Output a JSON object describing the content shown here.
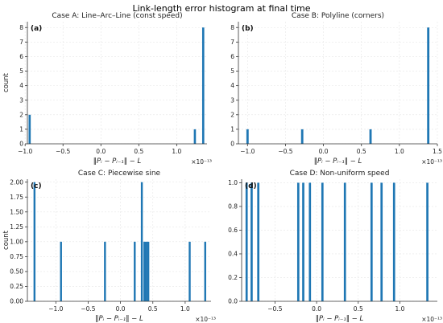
{
  "figure": {
    "title": "Link-length error histogram at final time"
  },
  "style": {
    "bar_color": "#1f77b4",
    "grid_color": "#e6e6e6",
    "axis_color": "#333333"
  },
  "chart_data": [
    {
      "type": "bar",
      "panel": "(a)",
      "title": "Case A: Line–Arc–Line (const speed)",
      "xlabel": "‖Pᵢ − Pᵢ₋₁‖ − L",
      "ylabel": "count",
      "offset_text": "×10⁻¹³",
      "xlim": [
        -0.97,
        1.4
      ],
      "ylim": [
        0,
        8.4
      ],
      "xticks": [
        -1.0,
        -0.5,
        0.0,
        0.5,
        1.0
      ],
      "xtick_labels": [
        "−1.0",
        "−0.5",
        "0.0",
        "0.5",
        "1.0"
      ],
      "yticks": [
        0,
        1,
        2,
        3,
        4,
        5,
        6,
        7,
        8
      ],
      "ytick_labels": [
        "0",
        "1",
        "2",
        "3",
        "4",
        "5",
        "6",
        "7",
        "8"
      ],
      "bin_width": 0.028,
      "x": [
        -0.94,
        1.24,
        1.35
      ],
      "values": [
        2,
        1,
        8
      ],
      "grid": true
    },
    {
      "type": "bar",
      "panel": "(b)",
      "title": "Case B: Polyline (corners)",
      "xlabel": "‖Pᵢ − Pᵢ₋₁‖ − L",
      "ylabel": "",
      "offset_text": "×10⁻¹³",
      "xlim": [
        -1.12,
        1.5
      ],
      "ylim": [
        0,
        8.4
      ],
      "xticks": [
        -1.0,
        -0.5,
        0.0,
        0.5,
        1.0,
        1.5
      ],
      "xtick_labels": [
        "−1.0",
        "−0.5",
        "0.0",
        "0.5",
        "1.0",
        "1.5"
      ],
      "yticks": [
        0,
        1,
        2,
        3,
        4,
        5,
        6,
        7,
        8
      ],
      "ytick_labels": [
        "0",
        "1",
        "2",
        "3",
        "4",
        "5",
        "6",
        "7",
        "8"
      ],
      "bin_width": 0.03,
      "x": [
        -1.0,
        -0.28,
        0.62,
        1.38
      ],
      "values": [
        1,
        1,
        1,
        8
      ],
      "grid": true
    },
    {
      "type": "bar",
      "panel": "(c)",
      "title": "Case C: Piecewise sine",
      "xlabel": "‖Pᵢ − Pᵢ₋₁‖ − L",
      "ylabel": "count",
      "offset_text": "×10⁻¹³",
      "xlim": [
        -1.44,
        1.4
      ],
      "ylim": [
        0,
        2.05
      ],
      "xticks": [
        -1.0,
        -0.5,
        0.0,
        0.5,
        1.0
      ],
      "xtick_labels": [
        "−1.0",
        "−0.5",
        "0.0",
        "0.5",
        "1.0"
      ],
      "yticks": [
        0,
        0.25,
        0.5,
        0.75,
        1.0,
        1.25,
        1.5,
        1.75,
        2.0
      ],
      "ytick_labels": [
        "0.00",
        "0.25",
        "0.50",
        "0.75",
        "1.00",
        "1.25",
        "1.50",
        "1.75",
        "2.00"
      ],
      "bin_width": 0.03,
      "x": [
        -1.33,
        -0.92,
        -0.24,
        0.22,
        0.33,
        0.37,
        0.4,
        0.43,
        1.07,
        1.31
      ],
      "values": [
        2,
        1,
        1,
        1,
        2,
        1,
        1,
        1,
        1,
        1
      ],
      "grid": true
    },
    {
      "type": "bar",
      "panel": "(d)",
      "title": "Case D: Non-uniform speed",
      "xlabel": "‖Pᵢ − Pᵢ₋₁‖ − L",
      "ylabel": "",
      "offset_text": "×10⁻¹³",
      "xlim": [
        -0.9,
        1.45
      ],
      "ylim": [
        0,
        1.03
      ],
      "xticks": [
        -0.5,
        0.0,
        0.5,
        1.0
      ],
      "xtick_labels": [
        "−0.5",
        "0.0",
        "0.5",
        "1.0"
      ],
      "yticks": [
        0,
        0.2,
        0.4,
        0.6,
        0.8,
        1.0
      ],
      "ytick_labels": [
        "0.0",
        "0.2",
        "0.4",
        "0.6",
        "0.8",
        "1.0"
      ],
      "bin_width": 0.026,
      "x": [
        -0.84,
        -0.78,
        -0.7,
        -0.22,
        -0.16,
        -0.08,
        0.07,
        0.34,
        0.66,
        0.78,
        0.93,
        1.33
      ],
      "values": [
        1,
        1,
        1,
        1,
        1,
        1,
        1,
        1,
        1,
        1,
        1,
        1
      ],
      "grid": true
    }
  ]
}
